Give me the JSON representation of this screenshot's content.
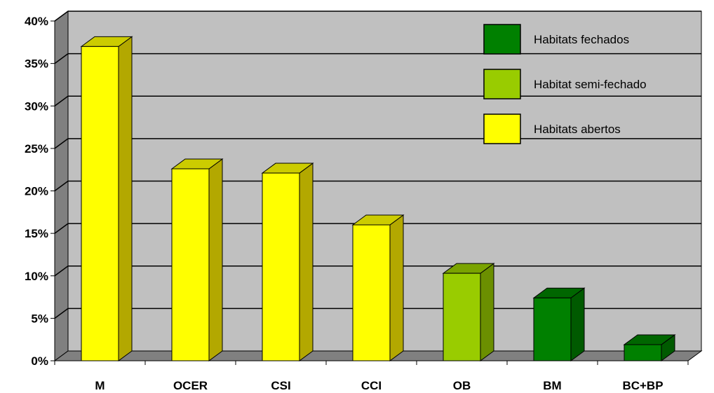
{
  "chart_data": {
    "type": "bar",
    "title": "",
    "xlabel": "",
    "ylabel": "",
    "categories": [
      "M",
      "OCER",
      "CSI",
      "CCI",
      "OB",
      "BM",
      "BC+BP"
    ],
    "values": [
      37,
      22.6,
      22.1,
      16,
      10.3,
      7.4,
      1.9
    ],
    "habitat": [
      "Habitats abertos",
      "Habitats abertos",
      "Habitats abertos",
      "Habitats abertos",
      "Habitat semi-fechado",
      "Habitats fechados",
      "Habitats fechados"
    ],
    "ylim": [
      0,
      40
    ],
    "yticks": [
      "0%",
      "5%",
      "10%",
      "15%",
      "20%",
      "25%",
      "30%",
      "35%",
      "40%"
    ],
    "grid": true,
    "legend_position": "top-right",
    "legend": [
      {
        "label": "Habitats fechados",
        "color": "#008000"
      },
      {
        "label": "Habitat semi-fechado",
        "color": "#99cc00"
      },
      {
        "label": "Habitats abertos",
        "color": "#ffff00"
      }
    ],
    "colors": {
      "Habitats fechados": {
        "front": "#008000",
        "side": "#005a00",
        "top": "#006600"
      },
      "Habitat semi-fechado": {
        "front": "#99cc00",
        "side": "#6b8f00",
        "top": "#7aa300"
      },
      "Habitats abertos": {
        "front": "#ffff00",
        "side": "#b3a800",
        "top": "#cccc00"
      },
      "plot_background": "#c0c0c0",
      "wall": "#808080"
    }
  }
}
